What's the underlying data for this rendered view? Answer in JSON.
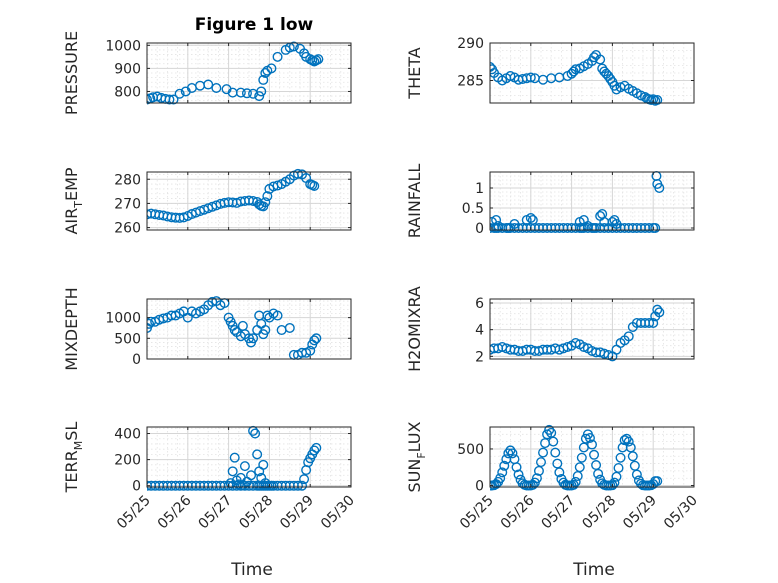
{
  "figure": {
    "title": "Figure 1 low",
    "marker_color": "#0072bd",
    "x_axis_label": "Time",
    "x_ticks": [
      "05/25",
      "05/26",
      "05/27",
      "05/28",
      "05/29",
      "05/30"
    ]
  },
  "chart_data": [
    {
      "type": "scatter",
      "title": "Figure 1 low",
      "ylabel": "PRESSURE",
      "xlim": [
        "05/25",
        "05/30"
      ],
      "ylim": [
        750,
        1010
      ],
      "yticks": [
        800,
        900,
        1000
      ],
      "grid": true,
      "series": [
        {
          "x": [
            0.0,
            0.08,
            0.15,
            0.25,
            0.35,
            0.45,
            0.55,
            0.65,
            0.8,
            0.95,
            1.1,
            1.3,
            1.5,
            1.7,
            1.95,
            2.1,
            2.3,
            2.45,
            2.6,
            2.75,
            2.8,
            2.85,
            2.9,
            2.95,
            3.05,
            3.2,
            3.4,
            3.5,
            3.6,
            3.75,
            3.85,
            3.9,
            4.0,
            4.05,
            4.1,
            4.15,
            4.2
          ],
          "y": [
            765,
            770,
            775,
            778,
            772,
            768,
            765,
            765,
            790,
            800,
            815,
            825,
            830,
            815,
            810,
            795,
            795,
            792,
            790,
            780,
            800,
            850,
            880,
            890,
            900,
            950,
            980,
            990,
            995,
            985,
            965,
            950,
            940,
            935,
            930,
            935,
            940
          ]
        }
      ]
    },
    {
      "type": "scatter",
      "ylabel": "THETA",
      "xlim": [
        "05/25",
        "05/30"
      ],
      "ylim": [
        282,
        290
      ],
      "yticks": [
        285,
        290
      ],
      "grid": true,
      "series": [
        {
          "x": [
            0.0,
            0.05,
            0.1,
            0.2,
            0.3,
            0.4,
            0.5,
            0.6,
            0.7,
            0.8,
            0.9,
            1.0,
            1.1,
            1.3,
            1.5,
            1.7,
            1.9,
            2.0,
            2.05,
            2.1,
            2.2,
            2.3,
            2.4,
            2.5,
            2.55,
            2.6,
            2.7,
            2.75,
            2.8,
            2.85,
            2.9,
            2.95,
            3.0,
            3.05,
            3.1,
            3.2,
            3.3,
            3.4,
            3.5,
            3.6,
            3.7,
            3.8,
            3.85,
            3.9,
            3.95,
            4.0,
            4.05,
            4.1
          ],
          "y": [
            286.8,
            286.5,
            286.0,
            285.4,
            285.0,
            285.3,
            285.6,
            285.4,
            285.1,
            285.2,
            285.3,
            285.4,
            285.3,
            285.1,
            285.3,
            285.4,
            285.6,
            285.9,
            286.2,
            286.5,
            286.6,
            286.9,
            287.2,
            287.6,
            288.1,
            288.4,
            287.8,
            286.6,
            286.2,
            285.9,
            285.6,
            285.2,
            284.8,
            284.3,
            283.8,
            284.1,
            284.3,
            283.9,
            283.6,
            283.3,
            283.0,
            282.8,
            282.6,
            282.5,
            282.4,
            282.5,
            282.3,
            282.4
          ]
        }
      ]
    },
    {
      "type": "scatter",
      "ylabel": "AIR_TEMP",
      "ylabel_main": "AIR",
      "ylabel_sub": "T",
      "ylabel_rest": "EMP",
      "xlim": [
        "05/25",
        "05/30"
      ],
      "ylim": [
        259,
        283
      ],
      "yticks": [
        260,
        270,
        280
      ],
      "grid": true,
      "series": [
        {
          "x": [
            0.0,
            0.1,
            0.2,
            0.3,
            0.4,
            0.5,
            0.6,
            0.7,
            0.8,
            0.9,
            1.0,
            1.1,
            1.2,
            1.3,
            1.4,
            1.5,
            1.6,
            1.7,
            1.8,
            1.9,
            2.0,
            2.1,
            2.2,
            2.3,
            2.4,
            2.5,
            2.6,
            2.7,
            2.75,
            2.8,
            2.85,
            2.9,
            2.95,
            3.0,
            3.1,
            3.2,
            3.3,
            3.4,
            3.5,
            3.6,
            3.7,
            3.8,
            3.9,
            4.0,
            4.05,
            4.1
          ],
          "y": [
            265.5,
            265.8,
            265.5,
            265.2,
            265.0,
            264.6,
            264.3,
            264.1,
            264.0,
            264.2,
            264.8,
            265.6,
            266.2,
            266.8,
            267.4,
            268.0,
            268.6,
            269.2,
            269.8,
            270.2,
            270.5,
            270.4,
            270.2,
            270.8,
            271.0,
            271.2,
            271.0,
            270.6,
            269.6,
            269.0,
            268.8,
            270.5,
            273.0,
            276.0,
            277.0,
            277.4,
            278.0,
            279.0,
            280.0,
            281.5,
            282.2,
            282.0,
            280.5,
            278.0,
            277.6,
            277.2
          ]
        }
      ]
    },
    {
      "type": "scatter",
      "ylabel": "RAINFALL",
      "xlim": [
        "05/25",
        "05/30"
      ],
      "ylim": [
        -0.05,
        1.4
      ],
      "yticks": [
        0,
        0.5,
        1
      ],
      "grid": true,
      "series": [
        {
          "x": [
            0.0,
            0.1,
            0.15,
            0.2,
            0.3,
            0.4,
            0.45,
            0.5,
            0.6,
            0.7,
            0.8,
            0.9,
            1.0,
            1.1,
            1.2,
            1.3,
            1.4,
            1.5,
            1.6,
            1.7,
            1.8,
            1.9,
            2.0,
            2.1,
            2.2,
            2.25,
            2.3,
            2.4,
            2.5,
            2.55,
            2.6,
            2.7,
            2.8,
            2.9,
            3.0,
            3.1,
            3.2,
            3.3,
            3.4,
            3.5,
            3.6,
            3.7,
            3.8,
            3.9,
            4.0,
            4.05,
            4.08,
            4.1,
            4.15,
            0.05,
            0.15,
            0.2,
            0.6,
            0.9,
            1.0,
            1.05,
            2.2,
            2.3,
            2.4,
            2.7,
            2.75,
            2.8,
            3.0,
            3.05,
            3.1
          ],
          "y": [
            0,
            0,
            0,
            0,
            0,
            0,
            0,
            0,
            0,
            0,
            0,
            0,
            0,
            0,
            0,
            0,
            0,
            0,
            0,
            0,
            0,
            0,
            0,
            0,
            0,
            0,
            0,
            0,
            0,
            0,
            0,
            0,
            0,
            0,
            0,
            0,
            0,
            0,
            0,
            0,
            0,
            0,
            0,
            0,
            0,
            0,
            1.3,
            1.1,
            1.0,
            0.15,
            0.2,
            0.05,
            0.1,
            0.2,
            0.25,
            0.2,
            0.15,
            0.2,
            0.05,
            0.3,
            0.35,
            0.15,
            0.15,
            0.2,
            0.1
          ]
        }
      ]
    },
    {
      "type": "scatter",
      "ylabel": "MIXDEPTH",
      "xlim": [
        "05/25",
        "05/30"
      ],
      "ylim": [
        0,
        1450
      ],
      "yticks": [
        0,
        500,
        1000
      ],
      "grid": true,
      "series": [
        {
          "x": [
            0.0,
            0.05,
            0.1,
            0.2,
            0.3,
            0.4,
            0.5,
            0.6,
            0.7,
            0.8,
            0.9,
            1.0,
            1.1,
            1.2,
            1.3,
            1.4,
            1.5,
            1.6,
            1.7,
            1.8,
            1.9,
            2.0,
            2.05,
            2.1,
            2.15,
            2.2,
            2.3,
            2.35,
            2.4,
            2.5,
            2.55,
            2.6,
            2.7,
            2.75,
            2.8,
            2.85,
            2.9,
            2.95,
            3.0,
            3.1,
            3.2,
            3.3,
            3.5,
            3.6,
            3.7,
            3.8,
            3.9,
            4.0,
            4.05,
            4.1,
            4.15
          ],
          "y": [
            750,
            850,
            900,
            900,
            950,
            980,
            1000,
            1050,
            1050,
            1100,
            1150,
            1000,
            1150,
            1100,
            1150,
            1200,
            1300,
            1380,
            1400,
            1300,
            1350,
            1000,
            900,
            800,
            700,
            650,
            550,
            800,
            600,
            500,
            400,
            500,
            700,
            1050,
            850,
            600,
            700,
            1050,
            1000,
            1100,
            1050,
            700,
            750,
            100,
            100,
            150,
            150,
            200,
            350,
            450,
            500
          ]
        }
      ]
    },
    {
      "type": "scatter",
      "ylabel": "H2OMIXRA",
      "xlim": [
        "05/25",
        "05/30"
      ],
      "ylim": [
        1.8,
        6.3
      ],
      "yticks": [
        2,
        4,
        6
      ],
      "grid": true,
      "series": [
        {
          "x": [
            0.0,
            0.1,
            0.2,
            0.3,
            0.4,
            0.5,
            0.6,
            0.7,
            0.8,
            0.9,
            1.0,
            1.1,
            1.2,
            1.3,
            1.4,
            1.5,
            1.6,
            1.7,
            1.8,
            1.9,
            2.0,
            2.1,
            2.2,
            2.3,
            2.4,
            2.5,
            2.6,
            2.7,
            2.8,
            2.9,
            3.0,
            3.1,
            3.2,
            3.3,
            3.4,
            3.5,
            3.6,
            3.7,
            3.8,
            3.9,
            4.0,
            4.05,
            4.1,
            4.15
          ],
          "y": [
            2.5,
            2.6,
            2.6,
            2.7,
            2.6,
            2.5,
            2.5,
            2.4,
            2.4,
            2.5,
            2.5,
            2.4,
            2.4,
            2.5,
            2.5,
            2.5,
            2.6,
            2.5,
            2.6,
            2.7,
            2.8,
            3.0,
            2.9,
            2.7,
            2.6,
            2.4,
            2.3,
            2.3,
            2.2,
            2.1,
            2.0,
            2.5,
            3.0,
            3.2,
            3.5,
            4.2,
            4.5,
            4.5,
            4.5,
            4.5,
            4.5,
            5.0,
            5.5,
            5.3
          ]
        }
      ]
    },
    {
      "type": "scatter",
      "ylabel": "TERR_MSL",
      "ylabel_main": "TERR",
      "ylabel_sub": "M",
      "ylabel_rest": "SL",
      "xlim": [
        "05/25",
        "05/30"
      ],
      "ylim": [
        -10,
        450
      ],
      "yticks": [
        0,
        200,
        400
      ],
      "grid": true,
      "series": [
        {
          "x": [
            0.0,
            0.1,
            0.2,
            0.3,
            0.4,
            0.5,
            0.6,
            0.7,
            0.8,
            0.9,
            1.0,
            1.1,
            1.2,
            1.3,
            1.4,
            1.5,
            1.6,
            1.7,
            1.8,
            1.9,
            2.0,
            2.1,
            2.2,
            2.3,
            2.4,
            2.5,
            2.6,
            2.7,
            2.75,
            2.8,
            2.85,
            2.9,
            2.95,
            3.0,
            3.05,
            3.1,
            3.2,
            3.3,
            3.4,
            3.5,
            3.6,
            3.7,
            3.8,
            3.85,
            3.9,
            3.95,
            4.0,
            4.05,
            4.1,
            4.15,
            2.05,
            2.1,
            2.15,
            2.2,
            2.25,
            2.3,
            2.35,
            2.4,
            2.45,
            2.55,
            2.6,
            2.65,
            2.7,
            2.75,
            2.8,
            2.85,
            2.9
          ],
          "y": [
            0,
            0,
            0,
            0,
            0,
            0,
            0,
            0,
            0,
            0,
            0,
            0,
            0,
            0,
            0,
            0,
            0,
            0,
            0,
            0,
            0,
            0,
            0,
            0,
            0,
            0,
            0,
            0,
            0,
            0,
            0,
            0,
            0,
            0,
            0,
            0,
            0,
            0,
            0,
            0,
            0,
            0,
            0,
            50,
            120,
            180,
            210,
            240,
            270,
            290,
            20,
            110,
            215,
            40,
            10,
            60,
            5,
            150,
            30,
            80,
            420,
            400,
            240,
            110,
            60,
            160,
            20
          ]
        }
      ]
    },
    {
      "type": "scatter",
      "ylabel": "SUN_FLUX",
      "ylabel_main": "SUN",
      "ylabel_sub": "F",
      "ylabel_rest": "LUX",
      "xlim": [
        "05/25",
        "05/30"
      ],
      "ylim": [
        -20,
        800
      ],
      "yticks": [
        0,
        500
      ],
      "grid": true,
      "series": [
        {
          "x": [
            0.0,
            0.05,
            0.1,
            0.15,
            0.2,
            0.25,
            0.3,
            0.35,
            0.4,
            0.45,
            0.5,
            0.55,
            0.6,
            0.65,
            0.7,
            0.75,
            0.8,
            0.85,
            0.9,
            0.95,
            1.0,
            1.05,
            1.1,
            1.15,
            1.2,
            1.25,
            1.3,
            1.35,
            1.4,
            1.45,
            1.5,
            1.55,
            1.6,
            1.65,
            1.7,
            1.75,
            1.8,
            1.85,
            1.9,
            1.95,
            2.0,
            2.05,
            2.1,
            2.15,
            2.2,
            2.25,
            2.3,
            2.35,
            2.4,
            2.45,
            2.5,
            2.55,
            2.6,
            2.65,
            2.7,
            2.75,
            2.8,
            2.85,
            2.9,
            2.95,
            3.0,
            3.05,
            3.1,
            3.15,
            3.2,
            3.25,
            3.3,
            3.35,
            3.4,
            3.45,
            3.5,
            3.55,
            3.6,
            3.65,
            3.7,
            3.75,
            3.8,
            3.85,
            3.9,
            3.95,
            4.0,
            4.05,
            4.1
          ],
          "y": [
            0,
            0,
            5,
            20,
            50,
            100,
            180,
            270,
            360,
            440,
            480,
            440,
            360,
            250,
            150,
            80,
            30,
            10,
            0,
            0,
            0,
            10,
            40,
            100,
            200,
            320,
            450,
            580,
            700,
            760,
            720,
            600,
            450,
            300,
            180,
            90,
            40,
            10,
            0,
            0,
            0,
            10,
            50,
            130,
            250,
            380,
            520,
            640,
            700,
            650,
            560,
            420,
            280,
            160,
            80,
            30,
            10,
            0,
            0,
            0,
            5,
            40,
            120,
            240,
            380,
            520,
            620,
            640,
            600,
            520,
            400,
            270,
            150,
            70,
            25,
            5,
            0,
            0,
            0,
            5,
            20,
            60,
            60
          ]
        }
      ]
    }
  ]
}
